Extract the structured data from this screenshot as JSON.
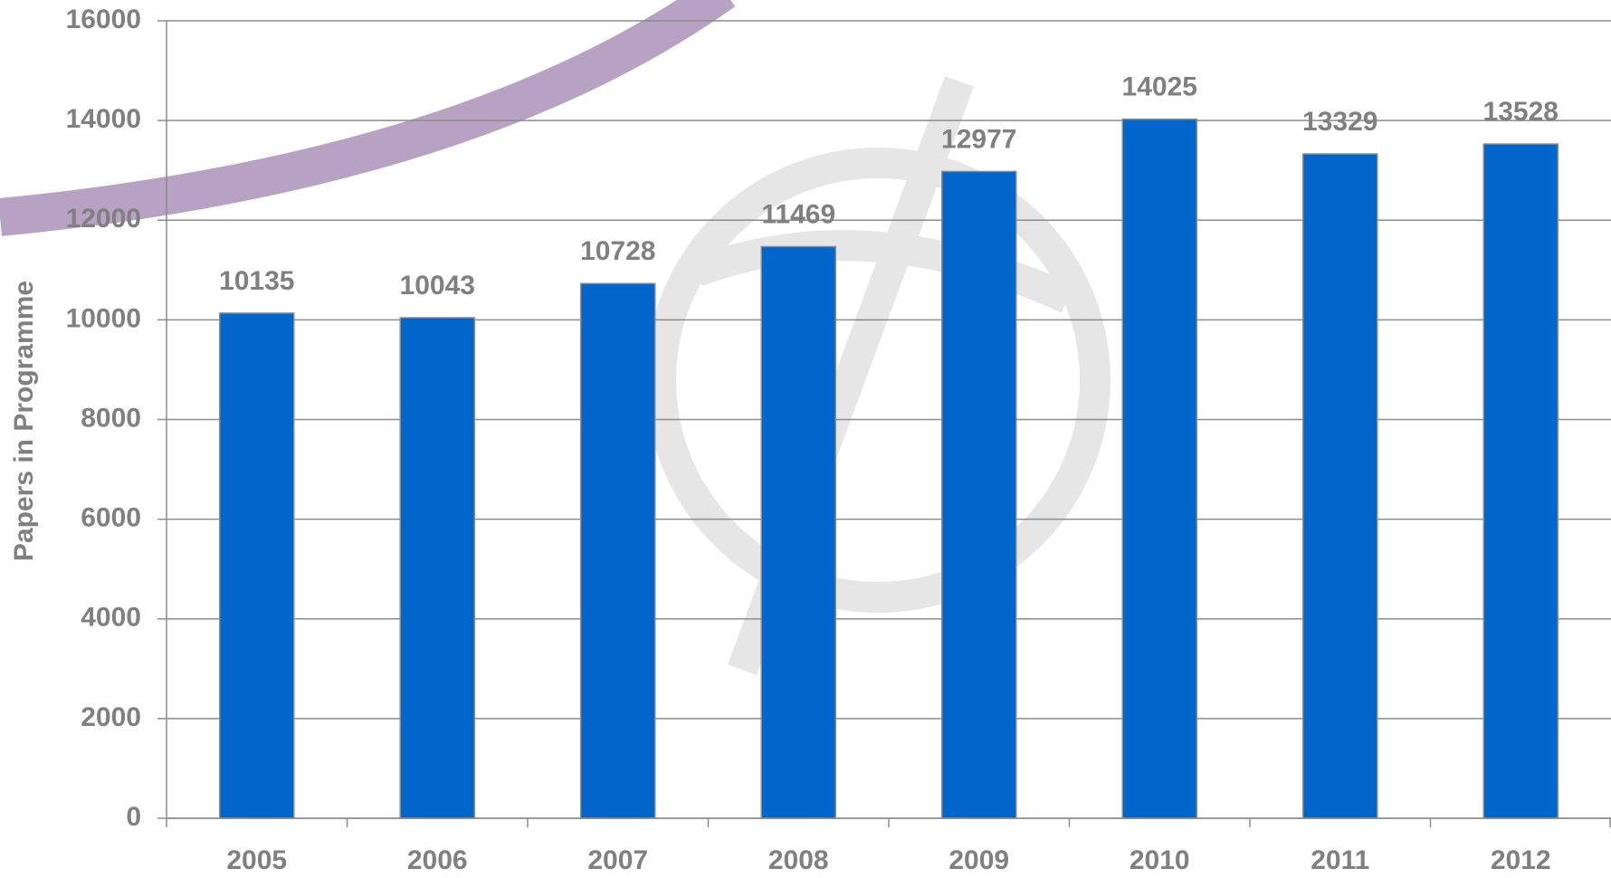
{
  "chart_data": {
    "type": "bar",
    "ylabel": "Papers in Programme",
    "categories": [
      "2005",
      "2006",
      "2007",
      "2008",
      "2009",
      "2010",
      "2011",
      "2012"
    ],
    "values": [
      10135,
      10043,
      10728,
      11469,
      12977,
      14025,
      13329,
      13528
    ],
    "color": "#0066cc",
    "ylim": [
      0,
      16000
    ],
    "yticks": [
      0,
      2000,
      4000,
      6000,
      8000,
      10000,
      12000,
      14000,
      16000
    ],
    "grid": true
  }
}
